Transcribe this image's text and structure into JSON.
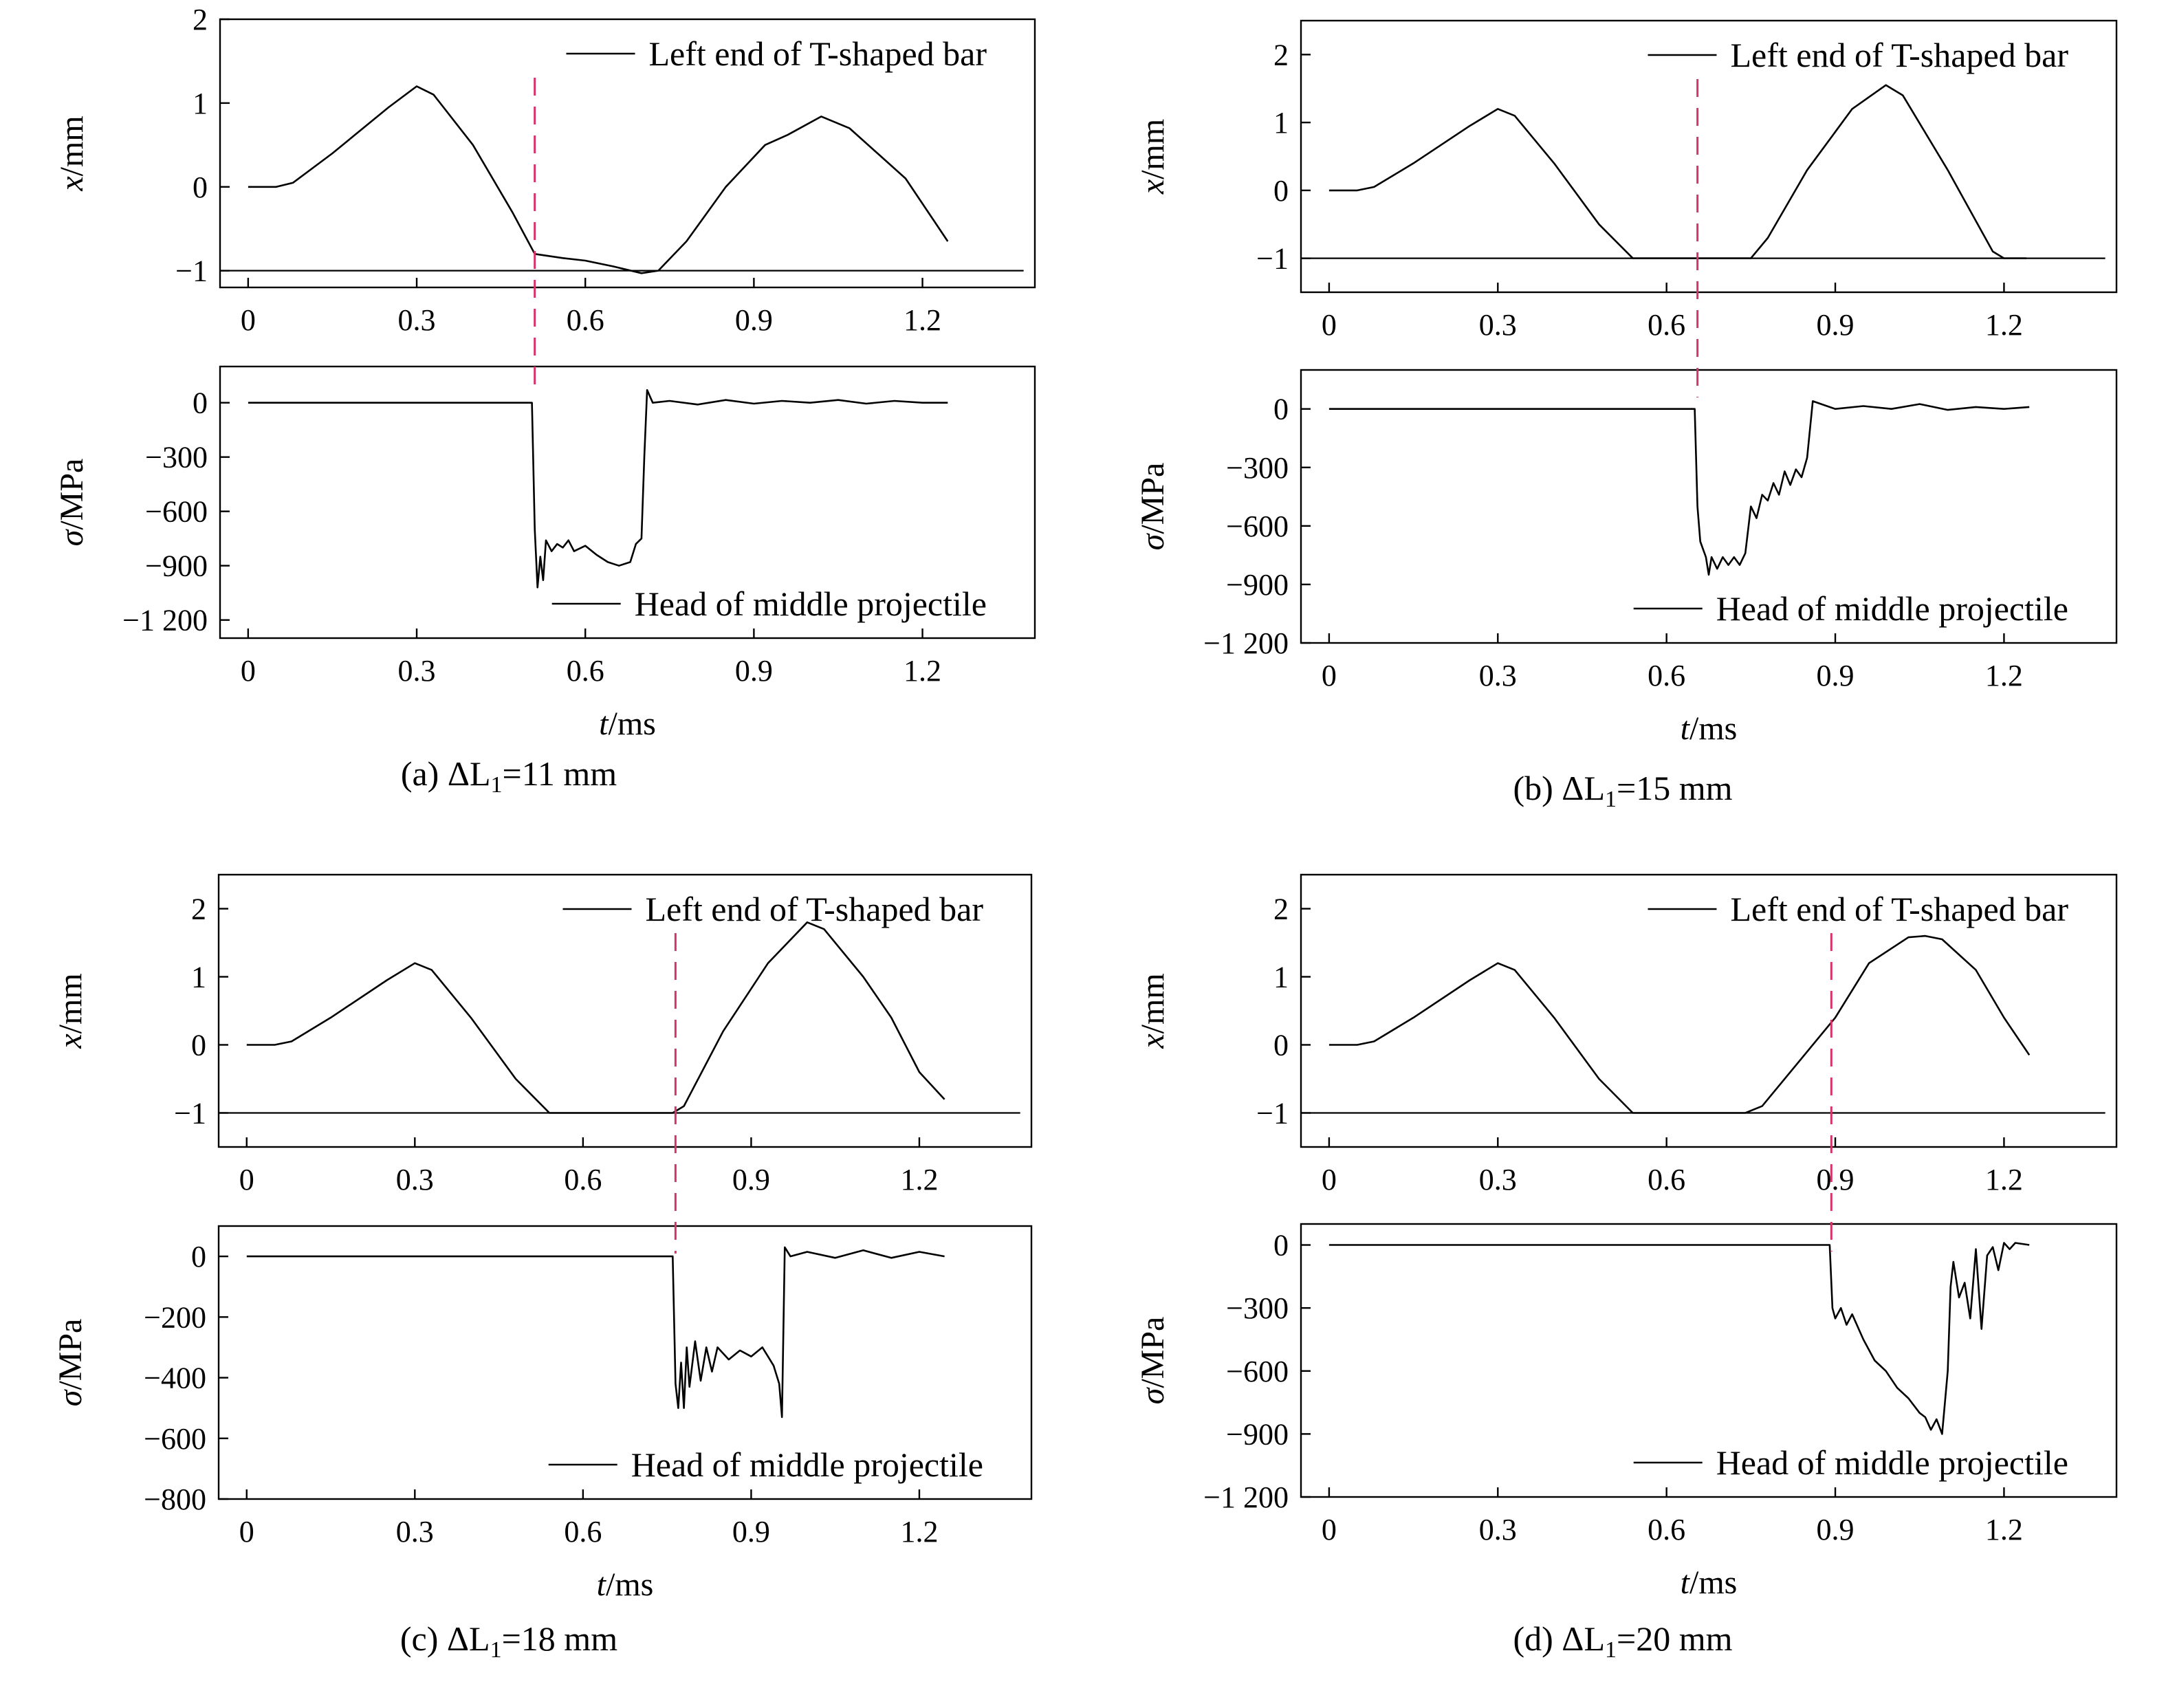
{
  "chart_data": [
    {
      "id": "a",
      "type": "line",
      "caption": {
        "prefix": "(a) ΔL",
        "sub": "1",
        "suffix": "=11 mm"
      },
      "marker_t": 0.51,
      "top": {
        "xlabel_var": "",
        "xlabel_unit": "",
        "ylabel_var": "x",
        "ylabel_unit": "/mm",
        "xlim": [
          -0.05,
          1.4
        ],
        "ylim": [
          -1.2,
          2
        ],
        "xticks": [
          0,
          0.3,
          0.6,
          0.9,
          1.2
        ],
        "xtick_labels": [
          "0",
          "0.3",
          "0.6",
          "0.9",
          "1.2"
        ],
        "yticks": [
          -1,
          0,
          1,
          2
        ],
        "ytick_labels": [
          "−1",
          "0",
          "1",
          "2"
        ],
        "legend": "Left end of T-shaped bar",
        "ref_y": -1,
        "series": [
          {
            "x": [
              0,
              0.05,
              0.08,
              0.15,
              0.25,
              0.3,
              0.33,
              0.4,
              0.47,
              0.51,
              0.56,
              0.6,
              0.65,
              0.7,
              0.73,
              0.78,
              0.85,
              0.92,
              0.96,
              1.02,
              1.07,
              1.12,
              1.17,
              1.22,
              1.245
            ],
            "y": [
              0,
              0,
              0.05,
              0.4,
              0.95,
              1.2,
              1.1,
              0.5,
              -0.3,
              -0.8,
              -0.85,
              -0.88,
              -0.95,
              -1.03,
              -1.0,
              -0.65,
              0.0,
              0.5,
              0.62,
              0.84,
              0.7,
              0.4,
              0.1,
              -0.4,
              -0.65
            ]
          }
        ]
      },
      "bottom": {
        "xlabel_var": "t",
        "xlabel_unit": "/ms",
        "ylabel_var": "σ",
        "ylabel_unit": "/MPa",
        "xlim": [
          -0.05,
          1.4
        ],
        "ylim": [
          -1300,
          200
        ],
        "xticks": [
          0,
          0.3,
          0.6,
          0.9,
          1.2
        ],
        "xtick_labels": [
          "0",
          "0.3",
          "0.6",
          "0.9",
          "1.2"
        ],
        "yticks": [
          0,
          -300,
          -600,
          -900,
          -1200
        ],
        "ytick_labels": [
          "0",
          "−300",
          "−600",
          "−900",
          "−1 200"
        ],
        "legend": "Head of middle projectile",
        "series": [
          {
            "x": [
              0,
              0.505,
              0.51,
              0.515,
              0.52,
              0.525,
              0.53,
              0.54,
              0.55,
              0.56,
              0.57,
              0.58,
              0.6,
              0.62,
              0.64,
              0.66,
              0.68,
              0.69,
              0.7,
              0.705,
              0.71,
              0.72,
              0.75,
              0.8,
              0.85,
              0.9,
              0.95,
              1.0,
              1.05,
              1.1,
              1.15,
              1.2,
              1.245
            ],
            "y": [
              0,
              0,
              -700,
              -1020,
              -850,
              -980,
              -760,
              -820,
              -780,
              -800,
              -760,
              -820,
              -790,
              -840,
              -880,
              -900,
              -880,
              -780,
              -750,
              -300,
              70,
              0,
              10,
              -10,
              15,
              -5,
              10,
              0,
              15,
              -5,
              10,
              0,
              0
            ]
          }
        ]
      }
    },
    {
      "id": "b",
      "type": "line",
      "caption": {
        "prefix": "(b) ΔL",
        "sub": "1",
        "suffix": "=15 mm"
      },
      "marker_t": 0.655,
      "top": {
        "xlabel_var": "",
        "xlabel_unit": "",
        "ylabel_var": "x",
        "ylabel_unit": "/mm",
        "xlim": [
          -0.05,
          1.4
        ],
        "ylim": [
          -1.5,
          2.5
        ],
        "xticks": [
          0,
          0.3,
          0.6,
          0.9,
          1.2
        ],
        "xtick_labels": [
          "0",
          "0.3",
          "0.6",
          "0.9",
          "1.2"
        ],
        "yticks": [
          -1,
          0,
          1,
          2
        ],
        "ytick_labels": [
          "−1",
          "0",
          "1",
          "2"
        ],
        "legend": "Left end of T-shaped bar",
        "ref_y": -1,
        "series": [
          {
            "x": [
              0,
              0.05,
              0.08,
              0.15,
              0.25,
              0.3,
              0.33,
              0.4,
              0.48,
              0.54,
              0.56,
              0.75,
              0.78,
              0.85,
              0.93,
              0.99,
              1.02,
              1.1,
              1.18,
              1.2,
              1.24
            ],
            "y": [
              0,
              0,
              0.05,
              0.4,
              0.95,
              1.2,
              1.1,
              0.4,
              -0.5,
              -1.0,
              -1.0,
              -1.0,
              -0.7,
              0.3,
              1.2,
              1.55,
              1.4,
              0.3,
              -0.9,
              -1.0,
              -1.0
            ]
          }
        ]
      },
      "bottom": {
        "xlabel_var": "t",
        "xlabel_unit": "/ms",
        "ylabel_var": "σ",
        "ylabel_unit": "/MPa",
        "xlim": [
          -0.05,
          1.4
        ],
        "ylim": [
          -1200,
          200
        ],
        "xticks": [
          0,
          0.3,
          0.6,
          0.9,
          1.2
        ],
        "xtick_labels": [
          "0",
          "0.3",
          "0.6",
          "0.9",
          "1.2"
        ],
        "yticks": [
          0,
          -300,
          -600,
          -900,
          -1200
        ],
        "ytick_labels": [
          "0",
          "−300",
          "−600",
          "−900",
          "−1 200"
        ],
        "legend": "Head of middle projectile",
        "series": [
          {
            "x": [
              0,
              0.65,
              0.655,
              0.66,
              0.67,
              0.675,
              0.68,
              0.69,
              0.7,
              0.71,
              0.72,
              0.73,
              0.74,
              0.75,
              0.76,
              0.77,
              0.78,
              0.79,
              0.8,
              0.81,
              0.82,
              0.83,
              0.84,
              0.85,
              0.86,
              0.9,
              0.95,
              1.0,
              1.05,
              1.1,
              1.15,
              1.2,
              1.245
            ],
            "y": [
              0,
              0,
              -500,
              -680,
              -760,
              -850,
              -760,
              -820,
              -760,
              -800,
              -760,
              -800,
              -740,
              -500,
              -560,
              -440,
              -470,
              -380,
              -440,
              -320,
              -390,
              -310,
              -350,
              -250,
              40,
              0,
              15,
              0,
              25,
              -5,
              10,
              0,
              10
            ]
          }
        ]
      }
    },
    {
      "id": "c",
      "type": "line",
      "caption": {
        "prefix": "(c) ΔL",
        "sub": "1",
        "suffix": "=18 mm"
      },
      "marker_t": 0.765,
      "top": {
        "xlabel_var": "",
        "xlabel_unit": "",
        "ylabel_var": "x",
        "ylabel_unit": "/mm",
        "xlim": [
          -0.05,
          1.4
        ],
        "ylim": [
          -1.5,
          2.5
        ],
        "xticks": [
          0,
          0.3,
          0.6,
          0.9,
          1.2
        ],
        "xtick_labels": [
          "0",
          "0.3",
          "0.6",
          "0.9",
          "1.2"
        ],
        "yticks": [
          -1,
          0,
          1,
          2
        ],
        "ytick_labels": [
          "−1",
          "0",
          "1",
          "2"
        ],
        "legend": "Left end of T-shaped bar",
        "ref_y": -1,
        "series": [
          {
            "x": [
              0,
              0.05,
              0.08,
              0.15,
              0.25,
              0.3,
              0.33,
              0.4,
              0.48,
              0.54,
              0.56,
              0.76,
              0.78,
              0.85,
              0.93,
              1.0,
              1.03,
              1.1,
              1.15,
              1.2,
              1.245
            ],
            "y": [
              0,
              0,
              0.05,
              0.4,
              0.95,
              1.2,
              1.1,
              0.4,
              -0.5,
              -1.0,
              -1.0,
              -1.0,
              -0.9,
              0.2,
              1.2,
              1.8,
              1.7,
              1.0,
              0.4,
              -0.4,
              -0.8
            ]
          }
        ]
      },
      "bottom": {
        "xlabel_var": "t",
        "xlabel_unit": "/ms",
        "ylabel_var": "σ",
        "ylabel_unit": "/MPa",
        "xlim": [
          -0.05,
          1.4
        ],
        "ylim": [
          -800,
          100
        ],
        "xticks": [
          0,
          0.3,
          0.6,
          0.9,
          1.2
        ],
        "xtick_labels": [
          "0",
          "0.3",
          "0.6",
          "0.9",
          "1.2"
        ],
        "yticks": [
          0,
          -200,
          -400,
          -600,
          -800
        ],
        "ytick_labels": [
          "0",
          "−200",
          "−400",
          "−600",
          "−800"
        ],
        "legend": "Head of middle projectile",
        "series": [
          {
            "x": [
              0,
              0.76,
              0.765,
              0.77,
              0.775,
              0.78,
              0.785,
              0.79,
              0.8,
              0.81,
              0.82,
              0.83,
              0.84,
              0.86,
              0.88,
              0.9,
              0.92,
              0.93,
              0.94,
              0.95,
              0.955,
              0.96,
              0.97,
              1.0,
              1.05,
              1.1,
              1.15,
              1.2,
              1.245
            ],
            "y": [
              0,
              0,
              -420,
              -500,
              -350,
              -500,
              -300,
              -430,
              -280,
              -410,
              -300,
              -380,
              -300,
              -340,
              -310,
              -330,
              -300,
              -330,
              -360,
              -420,
              -530,
              30,
              0,
              15,
              -5,
              20,
              -5,
              15,
              0
            ]
          }
        ]
      }
    },
    {
      "id": "d",
      "type": "line",
      "caption": {
        "prefix": "(d) ΔL",
        "sub": "1",
        "suffix": "=20 mm"
      },
      "marker_t": 0.893,
      "top": {
        "xlabel_var": "",
        "xlabel_unit": "",
        "ylabel_var": "x",
        "ylabel_unit": "/mm",
        "xlim": [
          -0.05,
          1.4
        ],
        "ylim": [
          -1.5,
          2.5
        ],
        "xticks": [
          0,
          0.3,
          0.6,
          0.9,
          1.2
        ],
        "xtick_labels": [
          "0",
          "0.3",
          "0.6",
          "0.9",
          "1.2"
        ],
        "yticks": [
          -1,
          0,
          1,
          2
        ],
        "ytick_labels": [
          "−1",
          "0",
          "1",
          "2"
        ],
        "legend": "Left end of T-shaped bar",
        "ref_y": -1,
        "series": [
          {
            "x": [
              0,
              0.05,
              0.08,
              0.15,
              0.25,
              0.3,
              0.33,
              0.4,
              0.48,
              0.54,
              0.56,
              0.74,
              0.77,
              0.85,
              0.9,
              0.96,
              1.03,
              1.06,
              1.09,
              1.15,
              1.2,
              1.245
            ],
            "y": [
              0,
              0,
              0.05,
              0.4,
              0.95,
              1.2,
              1.1,
              0.4,
              -0.5,
              -1.0,
              -1.0,
              -1.0,
              -0.9,
              -0.1,
              0.4,
              1.2,
              1.58,
              1.6,
              1.55,
              1.1,
              0.4,
              -0.15
            ]
          }
        ]
      },
      "bottom": {
        "xlabel_var": "t",
        "xlabel_unit": "/ms",
        "ylabel_var": "σ",
        "ylabel_unit": "/MPa",
        "xlim": [
          -0.05,
          1.4
        ],
        "ylim": [
          -1200,
          100
        ],
        "xticks": [
          0,
          0.3,
          0.6,
          0.9,
          1.2
        ],
        "xtick_labels": [
          "0",
          "0.3",
          "0.6",
          "0.9",
          "1.2"
        ],
        "yticks": [
          0,
          -300,
          -600,
          -900,
          -1200
        ],
        "ytick_labels": [
          "0",
          "−300",
          "−600",
          "−900",
          "−1 200"
        ],
        "legend": "Head of middle projectile",
        "series": [
          {
            "x": [
              0,
              0.89,
              0.895,
              0.9,
              0.91,
              0.92,
              0.93,
              0.95,
              0.97,
              0.99,
              1.01,
              1.03,
              1.05,
              1.06,
              1.07,
              1.08,
              1.09,
              1.1,
              1.105,
              1.11,
              1.12,
              1.13,
              1.14,
              1.15,
              1.16,
              1.17,
              1.18,
              1.19,
              1.2,
              1.21,
              1.22,
              1.245
            ],
            "y": [
              0,
              0,
              -300,
              -350,
              -300,
              -380,
              -330,
              -450,
              -550,
              -600,
              -680,
              -730,
              -800,
              -820,
              -880,
              -830,
              -900,
              -600,
              -200,
              -80,
              -250,
              -180,
              -350,
              -20,
              -400,
              -50,
              -10,
              -120,
              10,
              -20,
              10,
              0
            ]
          }
        ]
      }
    }
  ]
}
